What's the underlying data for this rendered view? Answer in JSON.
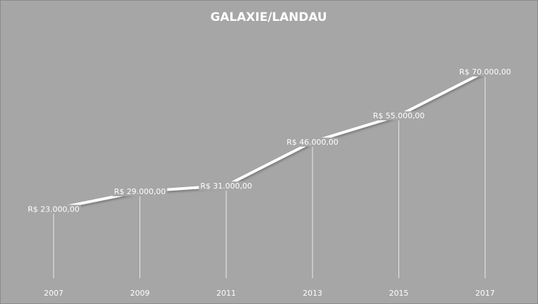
{
  "chart_data": {
    "type": "line",
    "title": "GALAXIE/LANDAU",
    "categories": [
      "2007",
      "2009",
      "2011",
      "2013",
      "2015",
      "2017"
    ],
    "values": [
      23000,
      29000,
      31000,
      46000,
      55000,
      70000
    ],
    "value_labels": [
      "R$ 23.000,00",
      "R$ 29.000,00",
      "R$ 31.000,00",
      "R$ 46.000,00",
      "R$ 55.000,00",
      "R$ 70.000,00"
    ],
    "color": "#ffffff"
  }
}
